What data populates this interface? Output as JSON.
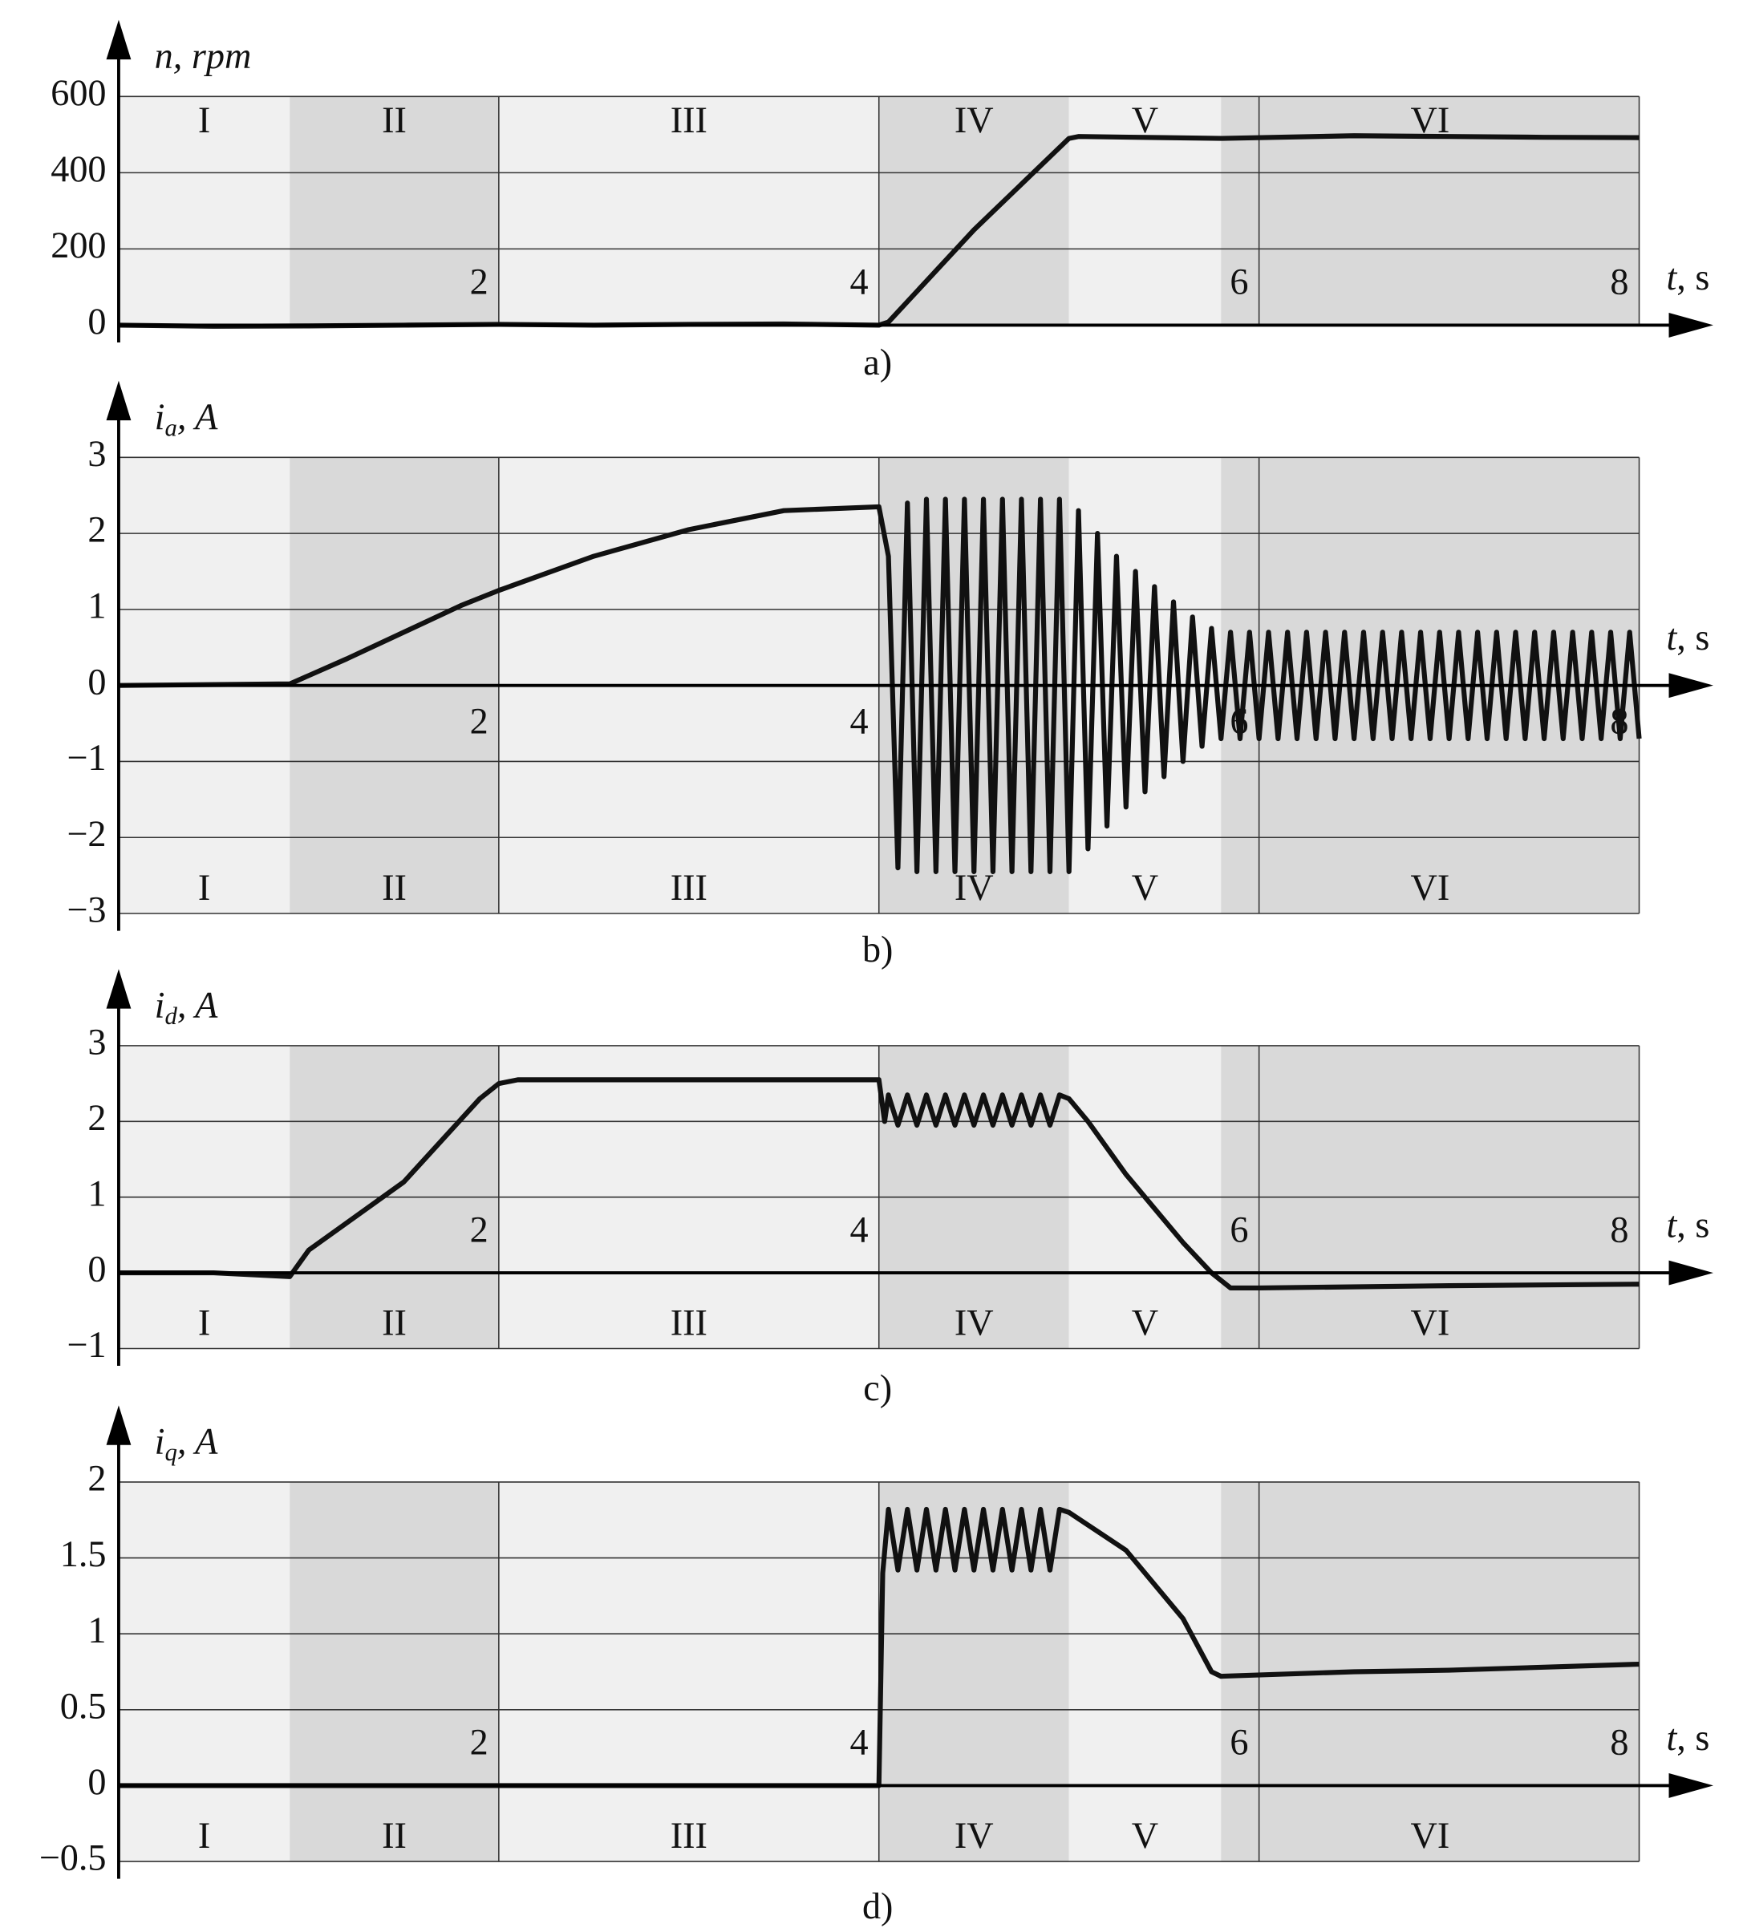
{
  "chart_data": [
    {
      "type": "line",
      "caption": "a)",
      "y_label": "n, rpm",
      "x_label_symbol": "t",
      "x_label_unit": ", s",
      "xlim": [
        0,
        8
      ],
      "xticks": [
        2,
        4,
        6,
        8
      ],
      "ylim": [
        0,
        600
      ],
      "yticks": [
        0,
        200,
        400,
        600
      ],
      "xtick_pos": "above",
      "region_label_pos": "top",
      "color": "#111",
      "regions": [
        {
          "label": "I",
          "start": 0,
          "end": 0.9,
          "shade": "#f0f0f0"
        },
        {
          "label": "II",
          "start": 0.9,
          "end": 2,
          "shade": "#d9d9d9"
        },
        {
          "label": "III",
          "start": 2,
          "end": 4,
          "shade": "#f0f0f0"
        },
        {
          "label": "IV",
          "start": 4,
          "end": 5,
          "shade": "#d9d9d9"
        },
        {
          "label": "V",
          "start": 5,
          "end": 5.8,
          "shade": "#f0f0f0"
        },
        {
          "label": "VI",
          "start": 5.8,
          "end": 8,
          "shade": "#d9d9d9"
        }
      ],
      "x": [
        0,
        0.5,
        1,
        1.5,
        2,
        2.5,
        3,
        3.5,
        4,
        4.05,
        4.5,
        5.0,
        5.05,
        5.5,
        5.8,
        6.5,
        7,
        7.5,
        8
      ],
      "values": [
        0,
        -3,
        -2,
        0,
        2,
        0,
        2,
        3,
        0,
        8,
        250,
        490,
        495,
        492,
        490,
        497,
        495,
        493,
        492
      ]
    },
    {
      "type": "line",
      "caption": "b)",
      "y_label_symbol": "i",
      "y_label_sub": "a",
      "y_label_unit": ", A",
      "x_label_symbol": "t",
      "x_label_unit": ", s",
      "xlim": [
        0,
        8
      ],
      "xticks": [
        2,
        4,
        6,
        8
      ],
      "ylim": [
        -3,
        3
      ],
      "yticks": [
        {
          "value": -3,
          "label": "−3"
        },
        {
          "value": -2,
          "label": "−2"
        },
        {
          "value": -1,
          "label": "−1"
        },
        0,
        1,
        2,
        3
      ],
      "xtick_pos": "below",
      "region_label_pos": "bottom",
      "color": "#111",
      "regions": [
        {
          "label": "I",
          "start": 0,
          "end": 0.9,
          "shade": "#f0f0f0"
        },
        {
          "label": "II",
          "start": 0.9,
          "end": 2,
          "shade": "#d9d9d9"
        },
        {
          "label": "III",
          "start": 2,
          "end": 4,
          "shade": "#f0f0f0"
        },
        {
          "label": "IV",
          "start": 4,
          "end": 5,
          "shade": "#d9d9d9"
        },
        {
          "label": "V",
          "start": 5,
          "end": 5.8,
          "shade": "#f0f0f0"
        },
        {
          "label": "VI",
          "start": 5.8,
          "end": 8,
          "shade": "#d9d9d9"
        }
      ],
      "x": [
        0,
        0.9,
        1.2,
        1.5,
        1.8,
        2.0,
        2.5,
        3.0,
        3.5,
        4.0,
        4.05,
        4.1,
        4.15,
        4.2,
        4.25,
        4.3,
        4.35,
        4.4,
        4.45,
        4.5,
        4.55,
        4.6,
        4.65,
        4.7,
        4.75,
        4.8,
        4.85,
        4.9,
        4.95,
        5.0,
        5.05,
        5.1,
        5.15,
        5.2,
        5.25,
        5.3,
        5.35,
        5.4,
        5.45,
        5.5,
        5.55,
        5.6,
        5.65,
        5.7,
        5.75,
        5.8,
        5.85,
        5.9,
        5.95,
        6,
        6.05,
        6.1,
        6.15,
        6.2,
        6.25,
        6.3,
        6.35,
        6.4,
        6.45,
        6.5,
        6.55,
        6.6,
        6.65,
        6.7,
        6.75,
        6.8,
        6.85,
        6.9,
        6.95,
        7,
        7.05,
        7.1,
        7.15,
        7.2,
        7.25,
        7.3,
        7.35,
        7.4,
        7.45,
        7.5,
        7.55,
        7.6,
        7.65,
        7.7,
        7.75,
        7.8,
        7.85,
        7.9,
        7.95,
        8
      ],
      "values": [
        0,
        0.02,
        0.35,
        0.7,
        1.05,
        1.25,
        1.7,
        2.05,
        2.3,
        2.35,
        1.7,
        -2.4,
        2.4,
        -2.45,
        2.45,
        -2.45,
        2.45,
        -2.45,
        2.45,
        -2.45,
        2.45,
        -2.45,
        2.45,
        -2.45,
        2.45,
        -2.45,
        2.45,
        -2.45,
        2.45,
        -2.45,
        2.3,
        -2.15,
        2.0,
        -1.85,
        1.7,
        -1.6,
        1.5,
        -1.4,
        1.3,
        -1.2,
        1.1,
        -1.0,
        0.9,
        -0.8,
        0.75,
        -0.7,
        0.7,
        -0.7,
        0.7,
        -0.7,
        0.7,
        -0.7,
        0.7,
        -0.7,
        0.7,
        -0.7,
        0.7,
        -0.7,
        0.7,
        -0.7,
        0.7,
        -0.7,
        0.7,
        -0.7,
        0.7,
        -0.7,
        0.7,
        -0.7,
        0.7,
        -0.7,
        0.7,
        -0.7,
        0.7,
        -0.7,
        0.7,
        -0.7,
        0.7,
        -0.7,
        0.7,
        -0.7,
        0.7,
        -0.7,
        0.7,
        -0.7,
        0.7,
        -0.7,
        0.7,
        -0.7,
        0.7,
        -0.7
      ]
    },
    {
      "type": "line",
      "caption": "c)",
      "y_label_symbol": "i",
      "y_label_sub": "d",
      "y_label_unit": ", A",
      "x_label_symbol": "t",
      "x_label_unit": ", s",
      "xlim": [
        0,
        8
      ],
      "xticks": [
        2,
        4,
        6,
        8
      ],
      "ylim": [
        -1,
        3
      ],
      "yticks": [
        {
          "value": -1,
          "label": "−1"
        },
        0,
        1,
        2,
        3
      ],
      "xtick_pos": "above",
      "region_label_pos": "bottom",
      "color": "#111",
      "regions": [
        {
          "label": "I",
          "start": 0,
          "end": 0.9,
          "shade": "#f0f0f0"
        },
        {
          "label": "II",
          "start": 0.9,
          "end": 2,
          "shade": "#d9d9d9"
        },
        {
          "label": "III",
          "start": 2,
          "end": 4,
          "shade": "#f0f0f0"
        },
        {
          "label": "IV",
          "start": 4,
          "end": 5,
          "shade": "#d9d9d9"
        },
        {
          "label": "V",
          "start": 5,
          "end": 5.8,
          "shade": "#f0f0f0"
        },
        {
          "label": "VI",
          "start": 5.8,
          "end": 8,
          "shade": "#d9d9d9"
        }
      ],
      "x": [
        0,
        0.5,
        0.9,
        1.0,
        1.5,
        1.9,
        2.0,
        2.1,
        3.0,
        4.0,
        4.03,
        4.05,
        4.1,
        4.15,
        4.2,
        4.25,
        4.3,
        4.35,
        4.4,
        4.45,
        4.5,
        4.55,
        4.6,
        4.65,
        4.7,
        4.75,
        4.8,
        4.85,
        4.9,
        4.95,
        5.0,
        5.1,
        5.3,
        5.6,
        5.75,
        5.85,
        6,
        7,
        8
      ],
      "values": [
        0,
        0,
        -0.05,
        0.3,
        1.2,
        2.3,
        2.5,
        2.55,
        2.55,
        2.55,
        2.0,
        2.35,
        1.95,
        2.35,
        1.95,
        2.35,
        1.95,
        2.35,
        1.95,
        2.35,
        1.95,
        2.35,
        1.95,
        2.35,
        1.95,
        2.35,
        1.95,
        2.35,
        1.95,
        2.35,
        2.3,
        2.0,
        1.3,
        0.4,
        0,
        -0.2,
        -0.2,
        -0.17,
        -0.15
      ]
    },
    {
      "type": "line",
      "caption": "d)",
      "y_label_symbol": "i",
      "y_label_sub": "q",
      "y_label_unit": ", A",
      "x_label_symbol": "t",
      "x_label_unit": ", s",
      "xlim": [
        0,
        8
      ],
      "xticks": [
        2,
        4,
        6,
        8
      ],
      "ylim": [
        -0.5,
        2
      ],
      "yticks": [
        {
          "value": -0.5,
          "label": "−0.5"
        },
        0,
        0.5,
        1,
        1.5,
        2
      ],
      "xtick_pos": "above",
      "region_label_pos": "bottom",
      "color": "#111",
      "regions": [
        {
          "label": "I",
          "start": 0,
          "end": 0.9,
          "shade": "#f0f0f0"
        },
        {
          "label": "II",
          "start": 0.9,
          "end": 2,
          "shade": "#d9d9d9"
        },
        {
          "label": "III",
          "start": 2,
          "end": 4,
          "shade": "#f0f0f0"
        },
        {
          "label": "IV",
          "start": 4,
          "end": 5,
          "shade": "#d9d9d9"
        },
        {
          "label": "V",
          "start": 5,
          "end": 5.8,
          "shade": "#f0f0f0"
        },
        {
          "label": "VI",
          "start": 5.8,
          "end": 8,
          "shade": "#d9d9d9"
        }
      ],
      "x": [
        0,
        1,
        2,
        3,
        4.0,
        4.02,
        4.05,
        4.1,
        4.15,
        4.2,
        4.25,
        4.3,
        4.35,
        4.4,
        4.45,
        4.5,
        4.55,
        4.6,
        4.65,
        4.7,
        4.75,
        4.8,
        4.85,
        4.9,
        4.95,
        5.0,
        5.3,
        5.6,
        5.75,
        5.8,
        6.5,
        7,
        8
      ],
      "values": [
        0,
        0,
        0,
        0,
        0,
        1.4,
        1.82,
        1.42,
        1.82,
        1.42,
        1.82,
        1.42,
        1.82,
        1.42,
        1.82,
        1.42,
        1.82,
        1.42,
        1.82,
        1.42,
        1.82,
        1.42,
        1.82,
        1.42,
        1.82,
        1.8,
        1.55,
        1.1,
        0.75,
        0.72,
        0.75,
        0.76,
        0.8
      ]
    }
  ]
}
